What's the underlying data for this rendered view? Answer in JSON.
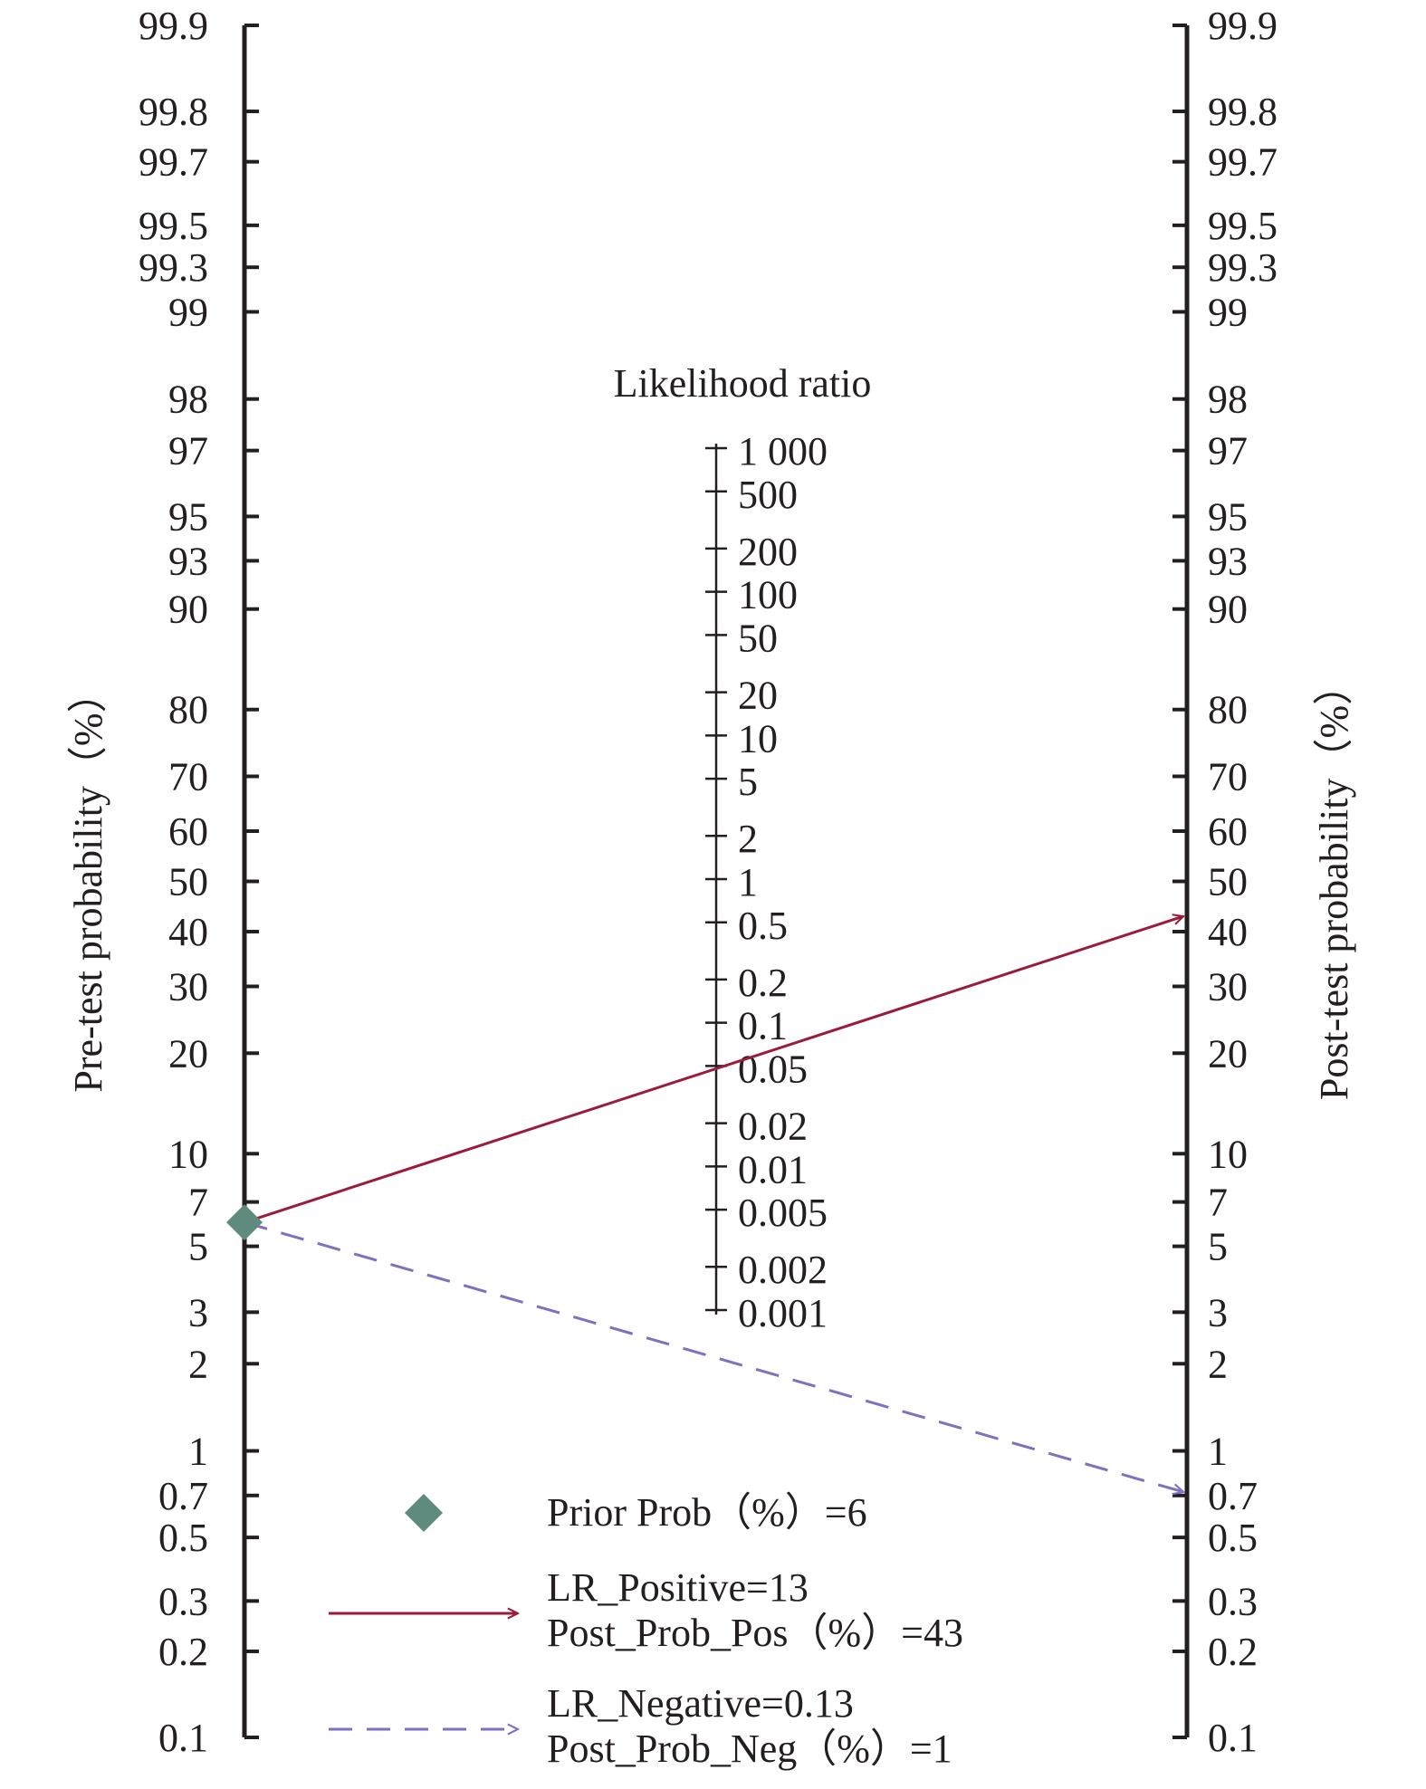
{
  "chart_data": {
    "type": "nomogram",
    "title": "",
    "left_axis": {
      "label": "Pre-test probability（%）",
      "ticks": [
        "0.1",
        "0.2",
        "0.3",
        "0.5",
        "0.7",
        "1",
        "2",
        "3",
        "5",
        "7",
        "10",
        "20",
        "30",
        "40",
        "50",
        "60",
        "70",
        "80",
        "90",
        "93",
        "95",
        "97",
        "98",
        "99",
        "99.3",
        "99.5",
        "99.7",
        "99.8",
        "99.9"
      ]
    },
    "right_axis": {
      "label": "Post-test probability（%）",
      "ticks": [
        "99.9",
        "99.8",
        "99.7",
        "99.5",
        "99.3",
        "99",
        "98",
        "97",
        "95",
        "93",
        "90",
        "80",
        "70",
        "60",
        "50",
        "40",
        "30",
        "20",
        "10",
        "7",
        "5",
        "3",
        "2",
        "1",
        "0.7",
        "0.5",
        "0.3",
        "0.2",
        "0.1"
      ]
    },
    "middle_axis": {
      "label": "Likelihood ratio",
      "ticks": [
        "1 000",
        "500",
        "200",
        "100",
        "50",
        "20",
        "10",
        "5",
        "2",
        "1",
        "0.5",
        "0.2",
        "0.1",
        "0.05",
        "0.02",
        "0.01",
        "0.005",
        "0.002",
        "0.001"
      ]
    },
    "prior_prob_pct": 6,
    "lr_positive": 13,
    "post_prob_pos_pct": 43,
    "lr_negative": 0.13,
    "post_prob_neg_pct": 1,
    "colors": {
      "axis": "#231f20",
      "prior_marker": "#5e8b7e",
      "positive_line": "#9b1b3a",
      "negative_line": "#7b72c0"
    },
    "legend": {
      "prior": "Prior Prob（%）=6",
      "pos_lr": "LR_Positive=13",
      "pos_post": "Post_Prob_Pos（%）=43",
      "neg_lr": "LR_Negative=0.13",
      "neg_post": "Post_Prob_Neg（%）=1"
    }
  }
}
